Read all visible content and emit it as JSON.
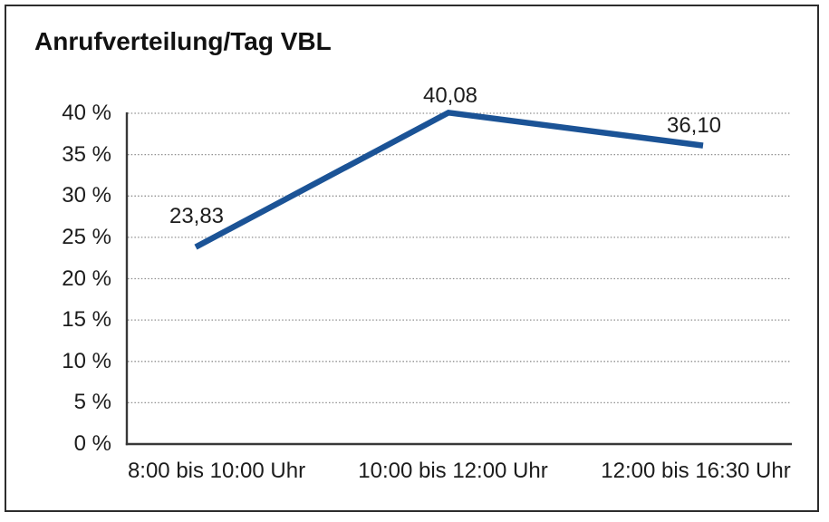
{
  "chart_data": {
    "type": "line",
    "title": "Anrufverteilung/Tag VBL",
    "categories": [
      "8:00 bis 10:00 Uhr",
      "10:00 bis 12:00 Uhr",
      "12:00 bis 16:30 Uhr"
    ],
    "values": [
      23.83,
      40.08,
      36.1
    ],
    "data_labels": [
      "23,83",
      "40,08",
      "36,10"
    ],
    "y_ticks": [
      "0 %",
      "5 %",
      "10 %",
      "15 %",
      "20 %",
      "25 %",
      "30 %",
      "35 %",
      "40 %"
    ],
    "y_tick_values": [
      0,
      5,
      10,
      15,
      20,
      25,
      30,
      35,
      40
    ],
    "ylim": [
      0,
      40
    ],
    "grid": "horizontal-dotted",
    "legend": "none",
    "line_color": "#1b5396"
  }
}
